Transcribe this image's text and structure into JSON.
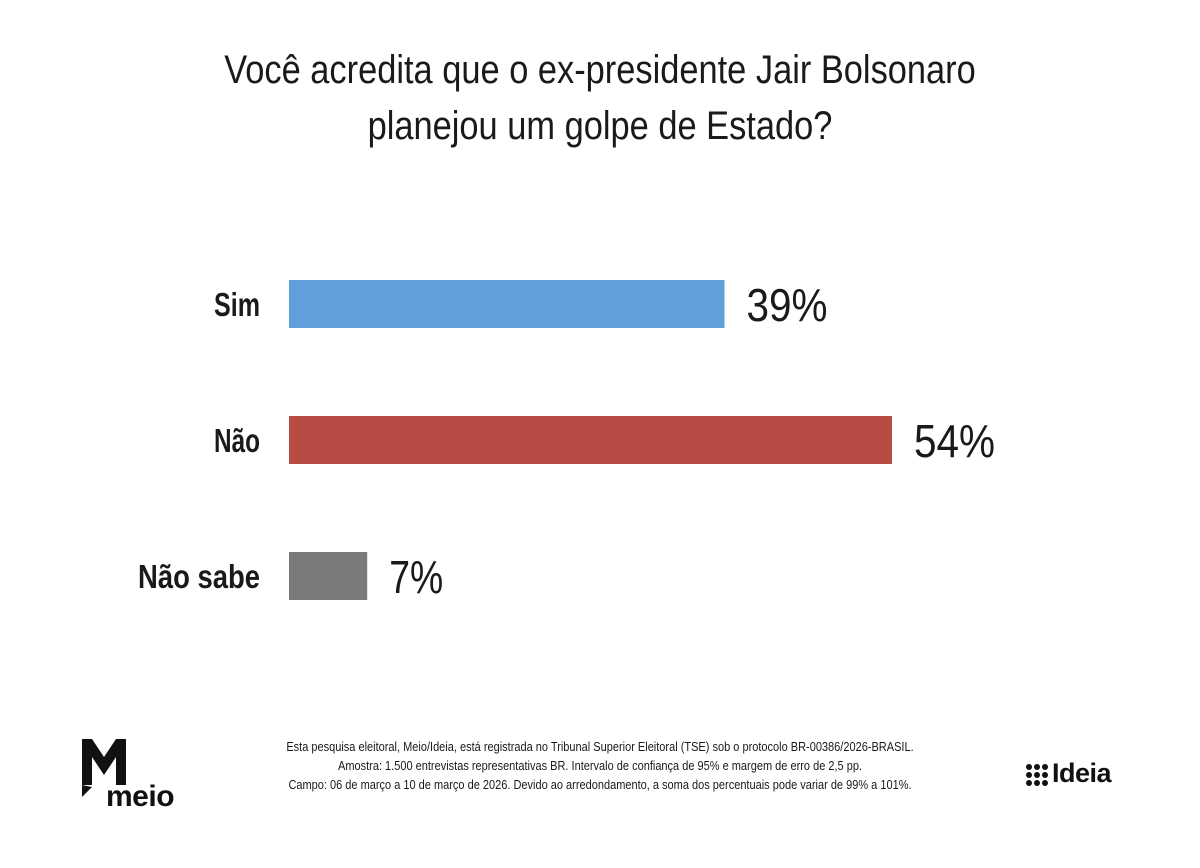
{
  "chart_data": {
    "type": "bar",
    "orientation": "horizontal",
    "title_lines": [
      "Você acredita que o ex-presidente Jair Bolsonaro",
      "planejou um golpe de Estado?"
    ],
    "categories": [
      "Sim",
      "Não",
      "Não sabe"
    ],
    "values": [
      39,
      54,
      7
    ],
    "value_labels": [
      "39%",
      "54%",
      "7%"
    ],
    "unit": "%",
    "colors": [
      "#5e9fdc",
      "#b84c44",
      "#7a7a7a"
    ],
    "xlim": [
      0,
      54
    ],
    "grid": false,
    "legend": "none"
  },
  "footnote": {
    "line1": "Esta pesquisa eleitoral, Meio/Ideia, está registrada no Tribunal Superior Eleitoral (TSE) sob o protocolo BR-00386/2026-BRASIL.",
    "line2": "Amostra: 1.500 entrevistas representativas BR. Intervalo de confiança de 95% e margem de erro de 2,5 pp.",
    "line3": "Campo: 06 de março a 10 de março de 2026. Devido ao arredondamento, a soma dos percentuais pode variar de 99% a 101%."
  },
  "logos": {
    "left_text": "meio",
    "left_icon": "meio-speech-m-logo",
    "right_text": "Ideia",
    "right_icon": "ideia-dot-grid-logo"
  }
}
